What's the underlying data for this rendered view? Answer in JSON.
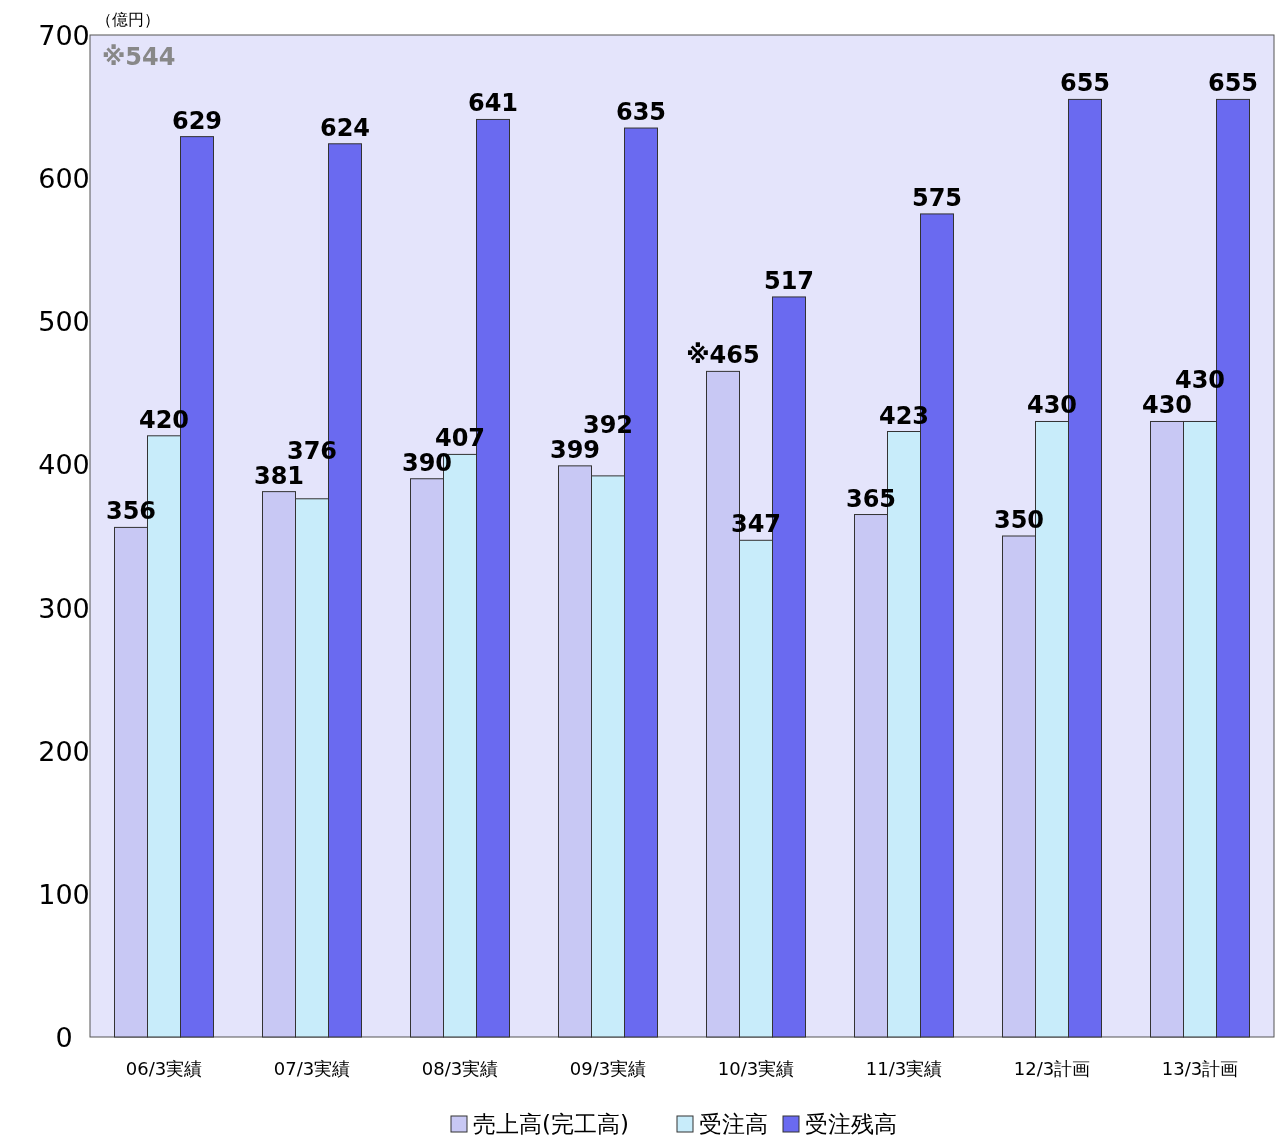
{
  "chart_data": {
    "type": "bar",
    "ylabel": "（億円）",
    "categories": [
      "06/3実績",
      "07/3実績",
      "08/3実績",
      "09/3実績",
      "10/3実績",
      "11/3実績",
      "12/3計画",
      "13/3計画"
    ],
    "series": [
      {
        "name": "売上高(完工高)",
        "color": "#c8c8f4",
        "values": [
          356,
          381,
          390,
          399,
          465,
          365,
          350,
          430
        ],
        "value_labels": [
          "356",
          "381",
          "390",
          "399",
          "※465",
          "365",
          "350",
          "430"
        ]
      },
      {
        "name": "受注高",
        "color": "#c8ecfa",
        "values": [
          420,
          376,
          407,
          392,
          347,
          423,
          430,
          430
        ],
        "value_labels": [
          "420",
          "376",
          "407",
          "392",
          "347",
          "423",
          "430",
          "430"
        ]
      },
      {
        "name": "受注残高",
        "color": "#6a6af0",
        "values": [
          629,
          624,
          641,
          635,
          517,
          575,
          655,
          655
        ],
        "value_labels": [
          "629",
          "624",
          "641",
          "635",
          "517",
          "575",
          "655",
          "655"
        ]
      }
    ],
    "annotations": [
      "※544"
    ],
    "ylim": [
      0,
      700
    ],
    "yticks": [
      0,
      100,
      200,
      300,
      400,
      500,
      600,
      700
    ],
    "grid": false,
    "legend": "bottom"
  }
}
